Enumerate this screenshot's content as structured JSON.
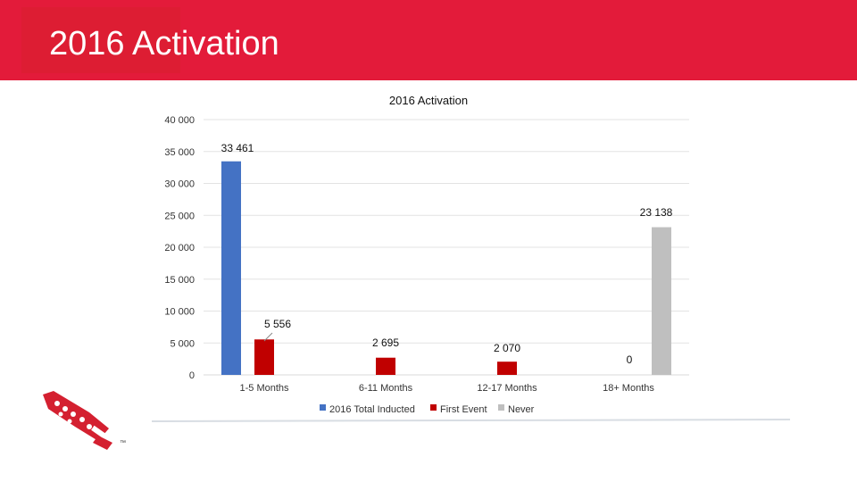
{
  "slide": {
    "title": "2016 Activation",
    "accent_color": "#e31b3a"
  },
  "chart_data": {
    "type": "bar",
    "title": "2016 Activation",
    "categories": [
      "1-5 Months",
      "6-11 Months",
      "12-17 Months",
      "18+ Months"
    ],
    "series": [
      {
        "name": "2016 Total Inducted",
        "color": "#4472c4",
        "values": [
          33461,
          null,
          null,
          null
        ],
        "labels": [
          "33 461",
          null,
          null,
          null
        ]
      },
      {
        "name": "First Event",
        "color": "#c00000",
        "values": [
          5556,
          2695,
          2070,
          0
        ],
        "labels": [
          "5 556",
          "2 695",
          "2 070",
          "0"
        ]
      },
      {
        "name": "Never",
        "color": "#bfbfbf",
        "values": [
          null,
          null,
          null,
          23138
        ],
        "labels": [
          null,
          null,
          null,
          "23 138"
        ]
      }
    ],
    "ylim": [
      0,
      40000
    ],
    "yticks": [
      0,
      5000,
      10000,
      15000,
      20000,
      25000,
      30000,
      35000,
      40000
    ],
    "ytick_labels": [
      "0",
      "5 000",
      "10 000",
      "15 000",
      "20 000",
      "25 000",
      "30 000",
      "35 000",
      "40 000"
    ],
    "grid": true,
    "legend": "bottom"
  },
  "logo": {
    "mark": "™",
    "icon": "arrowhead-logo-icon"
  }
}
